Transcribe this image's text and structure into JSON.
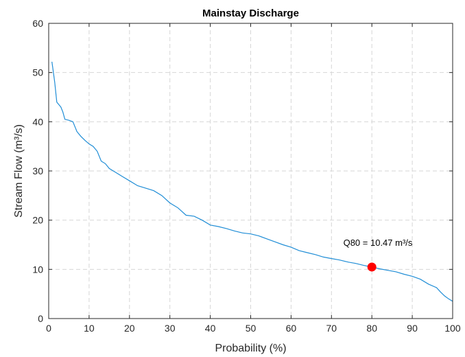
{
  "chart_data": {
    "type": "line",
    "title": "Mainstay Discharge",
    "xlabel": "Probability (%)",
    "ylabel": "Stream Flow (m³/s)",
    "xlim": [
      0,
      100
    ],
    "ylim": [
      0,
      60
    ],
    "xticks": [
      0,
      10,
      20,
      30,
      40,
      50,
      60,
      70,
      80,
      90,
      100
    ],
    "yticks": [
      0,
      10,
      20,
      30,
      40,
      50,
      60
    ],
    "grid": true,
    "line_color": "#1f8dd6",
    "marker_color": "#ff0000",
    "series": [
      {
        "x": [
          0.8,
          1.0,
          1.5,
          2.0,
          2.5,
          3.0,
          3.5,
          4.0,
          5.0,
          6.0,
          7.0,
          8.0,
          9.0,
          10.0,
          11.0,
          12.0,
          13.0,
          14.0,
          15.0,
          16.0,
          18.0,
          20.0,
          22.0,
          24.0,
          26.0,
          28.0,
          30.0,
          32.0,
          34.0,
          36.0,
          38.0,
          40.0,
          42.0,
          44.0,
          46.0,
          48.0,
          50.0,
          52.0,
          54.0,
          56.0,
          58.0,
          60.0,
          62.0,
          64.0,
          66.0,
          68.0,
          70.0,
          72.0,
          74.0,
          76.0,
          78.0,
          80.0,
          82.0,
          84.0,
          86.0,
          88.0,
          90.0,
          92.0,
          94.0,
          96.0,
          97.0,
          98.0,
          99.0,
          100.0
        ],
        "y": [
          52.2,
          51.0,
          48.0,
          44.0,
          43.5,
          43.0,
          42.0,
          40.5,
          40.3,
          40.0,
          38.0,
          37.0,
          36.2,
          35.5,
          35.0,
          34.0,
          32.0,
          31.5,
          30.5,
          30.0,
          29.0,
          28.0,
          27.0,
          26.5,
          26.0,
          25.0,
          23.5,
          22.5,
          21.0,
          20.8,
          20.0,
          19.0,
          18.7,
          18.3,
          17.8,
          17.4,
          17.2,
          16.8,
          16.2,
          15.6,
          15.0,
          14.5,
          13.8,
          13.4,
          13.0,
          12.5,
          12.2,
          11.9,
          11.5,
          11.2,
          10.8,
          10.47,
          10.1,
          9.8,
          9.5,
          9.0,
          8.6,
          8.0,
          7.0,
          6.3,
          5.4,
          4.6,
          4.0,
          3.5
        ]
      }
    ],
    "annotation": {
      "text": "Q80 = 10.47 m³/s",
      "x": 80,
      "y": 10.47
    }
  }
}
